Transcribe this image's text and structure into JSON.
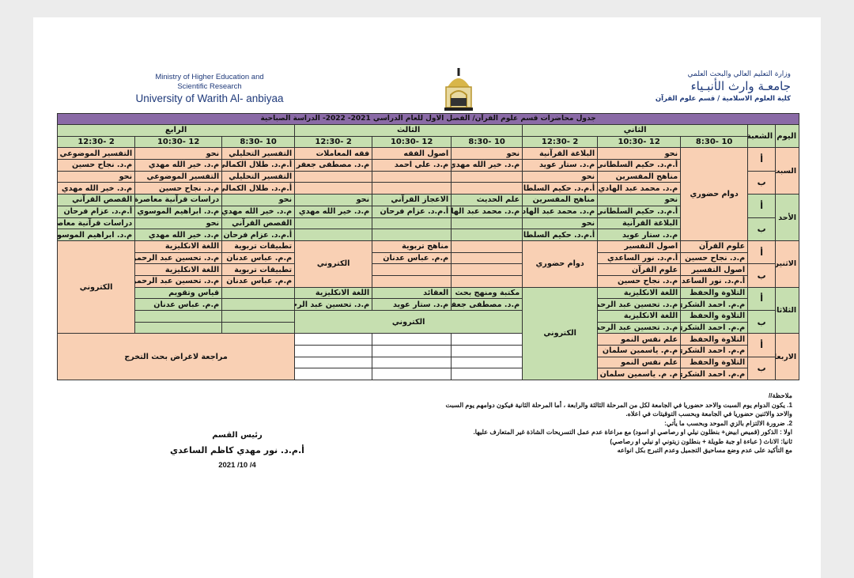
{
  "header": {
    "english": [
      "Ministry of Higher Education and",
      "Scientific Research",
      "University of Warith Al- anbiyaa"
    ],
    "arabic": [
      "وزارة التعليم العالي والبحث العلمي",
      "جامعـة وارث الأنبـياء",
      "كلية العلوم الاسلامية / قسم علوم القرآن"
    ]
  },
  "schedule": {
    "title": "جدول محاضرات قسم علوم القرآن/ الفصل الاول للعام الدراسي 2021- 2022- الدراسة الصباحية",
    "day_header": "اليوم",
    "section_header": "الشعبة",
    "stages": [
      "الثاني",
      "الثالث",
      "الرابع"
    ],
    "times": [
      "10 -8:30",
      "12 -10:30",
      "2 -12:30",
      "10 -8:30",
      "12 -10:30",
      "2 -12:30",
      "10 -8:30",
      "12 -10:30",
      "2 -12:30"
    ],
    "days": [
      "السبت",
      "الأحد",
      "الاثنين",
      "الثلاثاء",
      "الاربعاء"
    ],
    "sections": [
      "أ",
      "ب"
    ],
    "rows": [
      [
        "دوام حضوري",
        "نحو",
        "البلاغة القرآنية",
        "نحو",
        "اصول الفقه",
        "فقه المعاملات",
        "التفسير التحليلي",
        "نحو",
        "التفسير الموضوعي"
      ],
      [
        "",
        "أ.م.د. حكيم السلطاني",
        "م.د. ستار عويد",
        "م.د. خير الله مهدي",
        "م.د. علي احمد",
        "م.د. مصطفى جعفر",
        "أ.م.د. طلال الكمالي",
        "م.د. خير الله مهدي",
        "م.د. نجاح حسين"
      ],
      [
        "",
        "مناهج المفسرين",
        "نحو",
        "",
        "",
        "",
        "التفسير التحليلي",
        "التفسير الموضوعي",
        "نحو"
      ],
      [
        "",
        "م.د. محمد عبد الهادي",
        "أ.م.د. حكيم السلطاني",
        "",
        "",
        "",
        "أ.م.د. طلال الكمالي",
        "م.د. نجاح حسين",
        "م.د. خير الله مهدي"
      ],
      [
        "",
        "نحو",
        "مناهج المفسرين",
        "علم الحديث",
        "الاعجاز القرآني",
        "نحو",
        "نحو",
        "دراسات قرآنية معاصرة",
        "القصص القرآني"
      ],
      [
        "",
        "أ.م.د. حكيم السلطاني",
        "م.د. محمد عبد الهادي",
        "م.د. محمد عبد الهادي",
        "أ.م.د. عزام فرحان",
        "م.د. خير الله مهدي",
        "م.د. خير الله مهدي",
        "م.د. ابراهيم الموسوي",
        "أ.م.د. عزام فرحان"
      ],
      [
        "",
        "البلاغة القرآنية",
        "نحو",
        "",
        "",
        "",
        "القصص القرآني",
        "نحو",
        "دراسات قرآنية معاصرة"
      ],
      [
        "",
        "م.د. ستار عويد",
        "أ.م.د. حكيم السلطاني",
        "",
        "",
        "",
        "أ.م.د. عزام فرحان",
        "م.د. خير الله مهدي",
        "م.د. ابراهيم الموسوي"
      ],
      [
        "علوم القرآن",
        "اصول التفسير",
        "دوام حضوري",
        "",
        "مناهج تربوية",
        "الكتروني",
        "تطبيقات تربوية",
        "اللغة الانكليزية",
        "الكتروني"
      ],
      [
        "م.د. نجاح حسين",
        "أ.م.د. نور الساعدي",
        "",
        "",
        "م.م. عباس عدنان",
        "",
        "م.م. عباس عدنان",
        "م.د. تحسين عبد الرحمن",
        ""
      ],
      [
        "اصول التفسير",
        "علوم القرآن",
        "",
        "",
        "",
        "",
        "تطبيقات تربوية",
        "اللغة الانكليزية",
        ""
      ],
      [
        "أ.م.د. نور الساعدي",
        "م.د. نجاح حسين",
        "",
        "",
        "",
        "",
        "م.م. عباس عدنان",
        "م.د. تحسين عبد الرحمن",
        ""
      ],
      [
        "التلاوة والحفظ",
        "اللغة الانكليزية",
        "الكتروني",
        "مكتبة ومنهج بحث",
        "العقائد",
        "اللغة الانكليزية",
        "",
        "قياس وتقويم",
        ""
      ],
      [
        "م.م. احمد الشكري",
        "م.د. تحسين عبد الرحمن",
        "",
        "م.د. مصطفى جعفر",
        "م.د. ستار عويد",
        "م.د. تحسين عبد الرحمن",
        "",
        "م.م. عباس عدنان",
        ""
      ],
      [
        "التلاوة والحفظ",
        "اللغة الانكليزية",
        "",
        "الكتروني",
        "",
        "",
        "",
        "",
        ""
      ],
      [
        "م.م. احمد الشكري",
        "م.د. تحسين عبد الرحمن",
        "",
        "",
        "",
        "",
        "",
        "",
        ""
      ],
      [
        "التلاوة والحفظ",
        "علم نفس النمو",
        "",
        "",
        "",
        "",
        "مراجعة لاغراض بحث التخرج",
        "",
        ""
      ],
      [
        "م.م. احمد الشكري",
        "م.م. ياسمين سلمان",
        "",
        "",
        "",
        "",
        "",
        "",
        ""
      ],
      [
        "التلاوة والحفظ",
        "علم نفس النمو",
        "",
        "",
        "",
        "",
        "",
        "",
        ""
      ],
      [
        "م.م. احمد الشكري",
        "م. م. ياسمين سلمان",
        "",
        "",
        "",
        "",
        "",
        "",
        ""
      ]
    ]
  },
  "notes": {
    "heading": "ملاحظة//",
    "lines": [
      "1. يكون الدوام يوم السبت والاحد  حضوريا في الجامعة لكل من المرحلة الثالثة والرابعة ، أما المرحلة الثانية فيكون دوامهم يوم السبت والاحد والاثنين حضوريا في الجامعة وبحسب التوقيتات في اعلاه.",
      "2. ضرورة الالتزام بالزي الموحد وبحسب ما يأتي:",
      "اولا : الذكور (قميص ابيض+ بنطلون نيلي او رصاصي او اسود) مع مراعاة عدم عمل التسريحات الشاذة غير المتعارف عليها.",
      "ثانيا: الاناث ( عباءة او جبة طويلة + بنطلون زيتوني او نيلي او رصاصي)",
      "مع التأكيد على عدم وضع مساحيق التجميل وعدم التبرج بكل انواعه"
    ]
  },
  "signature": {
    "role": "رئيس القسم",
    "name": "أ.م.د. نور مهدي كاظم الساعدي",
    "date": "2021 /10 /4"
  },
  "colors": {
    "title": "#8a6aa6",
    "green": "#c6dfb0",
    "peach": "#f9d0b4",
    "header_text": "#1f3a7a"
  }
}
